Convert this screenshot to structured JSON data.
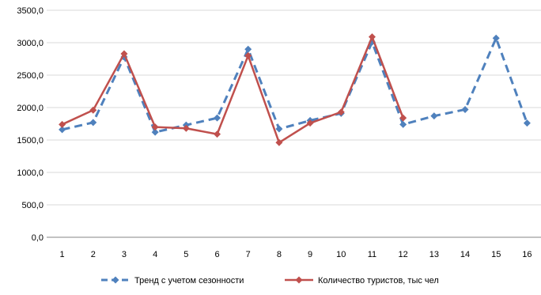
{
  "chart_data": {
    "type": "line",
    "title": "",
    "xlabel": "",
    "ylabel": "",
    "x": [
      "1",
      "2",
      "3",
      "4",
      "5",
      "6",
      "7",
      "8",
      "9",
      "10",
      "11",
      "12",
      "13",
      "14",
      "15",
      "16"
    ],
    "ylim": [
      0,
      3500
    ],
    "yticks": [
      "0,0",
      "500,0",
      "1000,0",
      "1500,0",
      "2000,0",
      "2500,0",
      "3000,0",
      "3500,0"
    ],
    "grid": true,
    "legend_position": "bottom",
    "series": [
      {
        "name": "Тренд с учетом сезонности",
        "color": "#4F81BD",
        "style": "dashed",
        "marker": "diamond",
        "values": [
          1660,
          1770,
          2780,
          1620,
          1730,
          1840,
          2900,
          1670,
          1800,
          1910,
          3010,
          1740,
          1870,
          1970,
          3070,
          1760
        ]
      },
      {
        "name": "Количество туристов, тыс чел",
        "color": "#C0504D",
        "style": "solid",
        "marker": "diamond",
        "values": [
          1740,
          1960,
          2830,
          1700,
          1680,
          1590,
          2800,
          1460,
          1760,
          1930,
          3090,
          1840,
          null,
          null,
          null,
          null
        ]
      }
    ]
  }
}
